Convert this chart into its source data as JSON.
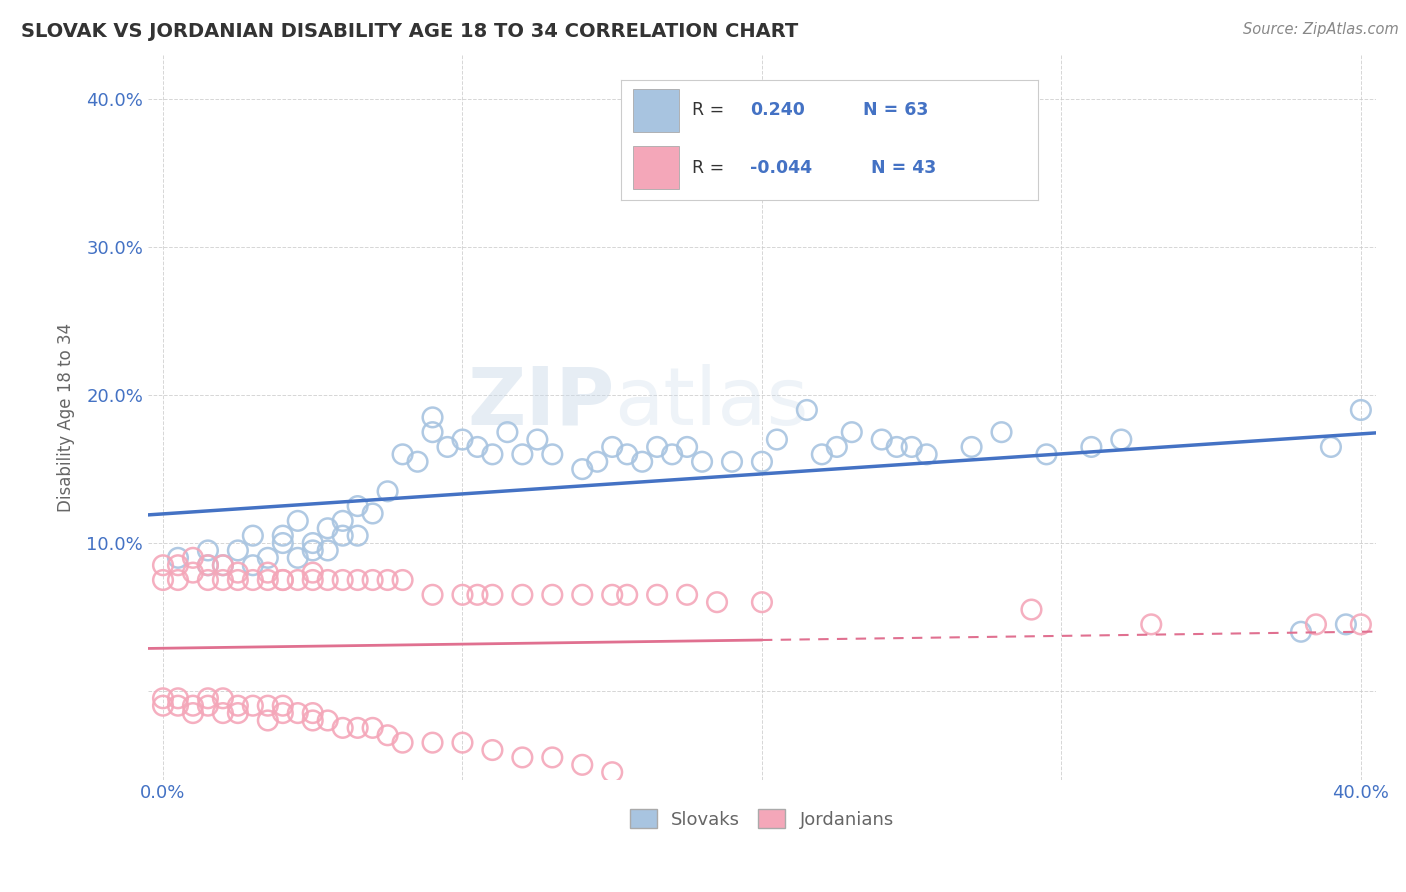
{
  "title": "SLOVAK VS JORDANIAN DISABILITY AGE 18 TO 34 CORRELATION CHART",
  "source": "Source: ZipAtlas.com",
  "ylabel": "Disability Age 18 to 34",
  "xlim": [
    -0.005,
    0.405
  ],
  "ylim": [
    -0.06,
    0.43
  ],
  "xticks": [
    0.0,
    0.1,
    0.2,
    0.3,
    0.4
  ],
  "xticklabels": [
    "0.0%",
    "",
    "",
    "",
    "40.0%"
  ],
  "yticks": [
    0.0,
    0.1,
    0.2,
    0.3,
    0.4
  ],
  "yticklabels": [
    "",
    "10.0%",
    "20.0%",
    "30.0%",
    "40.0%"
  ],
  "legend_labels": [
    "Slovaks",
    "Jordanians"
  ],
  "R_slovak": 0.24,
  "N_slovak": 63,
  "R_jordanian": -0.044,
  "N_jordanian": 43,
  "slovak_color": "#a8c4e0",
  "jordanian_color": "#f4a7b9",
  "slovak_line_color": "#4472c4",
  "jordanian_line_color": "#e07090",
  "background_color": "#ffffff",
  "tick_color": "#4472c4",
  "label_color": "#666666",
  "title_color": "#333333",
  "source_color": "#888888",
  "watermark": "ZIPatlas",
  "slovak_x": [
    0.005,
    0.015,
    0.015,
    0.02,
    0.025,
    0.03,
    0.03,
    0.035,
    0.04,
    0.04,
    0.045,
    0.045,
    0.05,
    0.05,
    0.055,
    0.055,
    0.06,
    0.06,
    0.065,
    0.065,
    0.07,
    0.075,
    0.08,
    0.085,
    0.09,
    0.09,
    0.095,
    0.1,
    0.105,
    0.11,
    0.115,
    0.12,
    0.125,
    0.13,
    0.14,
    0.145,
    0.15,
    0.155,
    0.16,
    0.165,
    0.17,
    0.175,
    0.18,
    0.19,
    0.2,
    0.205,
    0.215,
    0.22,
    0.225,
    0.23,
    0.24,
    0.245,
    0.25,
    0.255,
    0.27,
    0.28,
    0.295,
    0.31,
    0.32,
    0.38,
    0.39,
    0.395,
    0.4
  ],
  "slovak_y": [
    0.09,
    0.085,
    0.095,
    0.085,
    0.095,
    0.085,
    0.105,
    0.09,
    0.1,
    0.105,
    0.09,
    0.115,
    0.095,
    0.1,
    0.11,
    0.095,
    0.115,
    0.105,
    0.125,
    0.105,
    0.12,
    0.135,
    0.16,
    0.155,
    0.175,
    0.185,
    0.165,
    0.17,
    0.165,
    0.16,
    0.175,
    0.16,
    0.17,
    0.16,
    0.15,
    0.155,
    0.165,
    0.16,
    0.155,
    0.165,
    0.16,
    0.165,
    0.155,
    0.155,
    0.155,
    0.17,
    0.19,
    0.16,
    0.165,
    0.175,
    0.17,
    0.165,
    0.165,
    0.16,
    0.165,
    0.175,
    0.16,
    0.165,
    0.17,
    0.04,
    0.165,
    0.045,
    0.19
  ],
  "jordanian_x": [
    0.0,
    0.0,
    0.005,
    0.005,
    0.01,
    0.01,
    0.015,
    0.015,
    0.02,
    0.02,
    0.025,
    0.025,
    0.03,
    0.035,
    0.035,
    0.04,
    0.04,
    0.045,
    0.05,
    0.05,
    0.055,
    0.06,
    0.065,
    0.07,
    0.075,
    0.08,
    0.09,
    0.1,
    0.105,
    0.11,
    0.12,
    0.13,
    0.14,
    0.15,
    0.155,
    0.165,
    0.175,
    0.185,
    0.2,
    0.29,
    0.33,
    0.385,
    0.4
  ],
  "jordanian_y": [
    0.075,
    0.085,
    0.075,
    0.085,
    0.08,
    0.09,
    0.075,
    0.085,
    0.075,
    0.085,
    0.075,
    0.08,
    0.075,
    0.075,
    0.08,
    0.075,
    0.075,
    0.075,
    0.075,
    0.08,
    0.075,
    0.075,
    0.075,
    0.075,
    0.075,
    0.075,
    0.065,
    0.065,
    0.065,
    0.065,
    0.065,
    0.065,
    0.065,
    0.065,
    0.065,
    0.065,
    0.065,
    0.06,
    0.06,
    0.055,
    0.045,
    0.045,
    0.045
  ],
  "jordanian_y_below": [
    -0.005,
    -0.01,
    -0.005,
    -0.01,
    -0.01,
    -0.015,
    -0.005,
    -0.01,
    -0.005,
    -0.015,
    -0.01,
    -0.015,
    -0.01,
    -0.01,
    -0.02,
    -0.01,
    -0.015,
    -0.015,
    -0.015,
    -0.02,
    -0.02,
    -0.025,
    -0.025,
    -0.025,
    -0.03,
    -0.035,
    -0.035,
    -0.035,
    -0.04,
    -0.045,
    -0.045,
    -0.05,
    -0.055
  ]
}
